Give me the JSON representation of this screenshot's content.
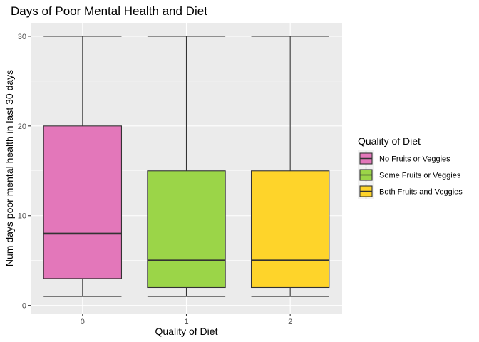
{
  "chart_data": {
    "type": "boxplot",
    "title": "Days of Poor Mental Health and Diet",
    "xlabel": "Quality of Diet",
    "ylabel": "Num days poor mental health in last 30 days",
    "ylim": [
      -0.9,
      31.5
    ],
    "yticks": [
      0,
      10,
      20,
      30
    ],
    "categories": [
      "0",
      "1",
      "2"
    ],
    "boxes": [
      {
        "category": "0",
        "whisker_low": 1,
        "q1": 3,
        "median": 8,
        "q3": 20,
        "whisker_high": 30,
        "color": "#E377BA"
      },
      {
        "category": "1",
        "whisker_low": 1,
        "q1": 2,
        "median": 5,
        "q3": 15,
        "whisker_high": 30,
        "color": "#9BD548"
      },
      {
        "category": "2",
        "whisker_low": 1,
        "q1": 2,
        "median": 5,
        "q3": 15,
        "whisker_high": 30,
        "color": "#FED42A"
      }
    ],
    "legend": {
      "title": "Quality of Diet",
      "position": "right",
      "entries": [
        {
          "label": "No Fruits or Veggies",
          "color": "#E377BA"
        },
        {
          "label": "Some Fruits or Veggies",
          "color": "#9BD548"
        },
        {
          "label": "Both Fruits and Veggies",
          "color": "#FED42A"
        }
      ]
    },
    "grid": true,
    "panel_background": "#EBEBEB"
  }
}
